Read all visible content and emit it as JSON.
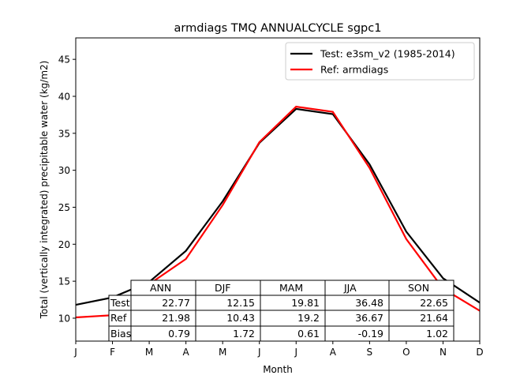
{
  "chart_data": {
    "type": "line",
    "title": "armdiags TMQ ANNUALCYCLE sgpc1",
    "xlabel": "Month",
    "ylabel": "Total (vertically integrated) precipitable water (kg/m2)",
    "x": [
      "J",
      "F",
      "M",
      "A",
      "M",
      "J",
      "J",
      "A",
      "S",
      "O",
      "N",
      "D"
    ],
    "ylim": [
      6.9,
      47.9
    ],
    "yticks": [
      10,
      15,
      20,
      25,
      30,
      35,
      40,
      45
    ],
    "grid": false,
    "legend_position": "top-right",
    "series": [
      {
        "name": "Test: e3sm_v2 (1985-2014)",
        "color": "#000000",
        "values": [
          11.8,
          12.8,
          14.9,
          19.1,
          25.8,
          33.7,
          38.3,
          37.6,
          30.8,
          21.7,
          15.4,
          12.1
        ]
      },
      {
        "name": "Ref: armdiags",
        "color": "#ff0000",
        "values": [
          10.1,
          10.4,
          14.6,
          18.0,
          25.3,
          33.8,
          38.6,
          37.9,
          30.3,
          20.7,
          14.0,
          11.0
        ]
      }
    ],
    "table": {
      "columns": [
        "ANN",
        "DJF",
        "MAM",
        "JJA",
        "SON"
      ],
      "rows": [
        {
          "label": "Test",
          "values": [
            "22.77",
            "12.15",
            "19.81",
            "36.48",
            "22.65"
          ]
        },
        {
          "label": "Ref",
          "values": [
            "21.98",
            "10.43",
            "19.2",
            "36.67",
            "21.64"
          ]
        },
        {
          "label": "Bias",
          "values": [
            "0.79",
            "1.72",
            "0.61",
            "-0.19",
            "1.02"
          ]
        }
      ]
    }
  }
}
